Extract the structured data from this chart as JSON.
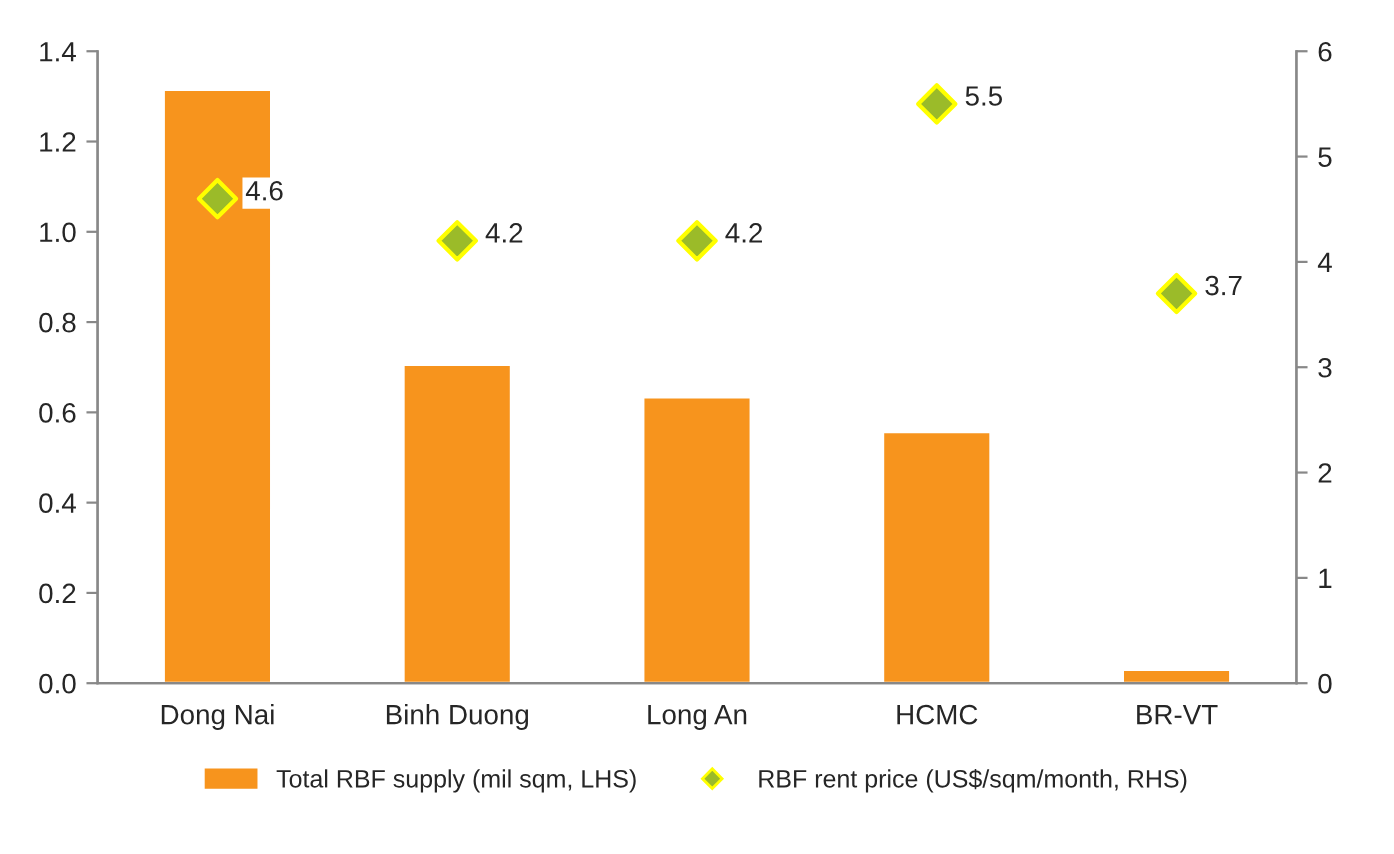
{
  "chart_data": {
    "type": "bar",
    "categories": [
      "Dong Nai",
      "Binh Duong",
      "Long An",
      "HCMC",
      "BR-VT"
    ],
    "series": [
      {
        "name": "Total RBF supply (mil sqm, LHS)",
        "color": "#f7941d",
        "values": [
          1.315,
          0.706,
          0.634,
          0.557,
          0.03
        ]
      },
      {
        "name": "RBF rent price (US$/sqm/month, RHS)",
        "type": "scatter",
        "axis": "y2",
        "color": "#9bbb29",
        "marker": "diamond",
        "values": [
          4.6,
          4.2,
          4.2,
          5.5,
          3.7
        ],
        "value_labels": [
          "4.6",
          "4.2",
          "4.2",
          "5.5",
          "3.7"
        ]
      }
    ],
    "ylim": [
      0,
      1.4
    ],
    "yticks": [
      {
        "value": 0,
        "label": "0.0"
      },
      0.2,
      0.4,
      0.6,
      0.8,
      {
        "value": 1,
        "label": "1.0"
      },
      1.2,
      1.4
    ],
    "y2lim": [
      0,
      6
    ],
    "y2ticks": [
      0,
      1,
      2,
      3,
      4,
      5,
      6
    ],
    "grid": false,
    "legend": "bottom"
  }
}
